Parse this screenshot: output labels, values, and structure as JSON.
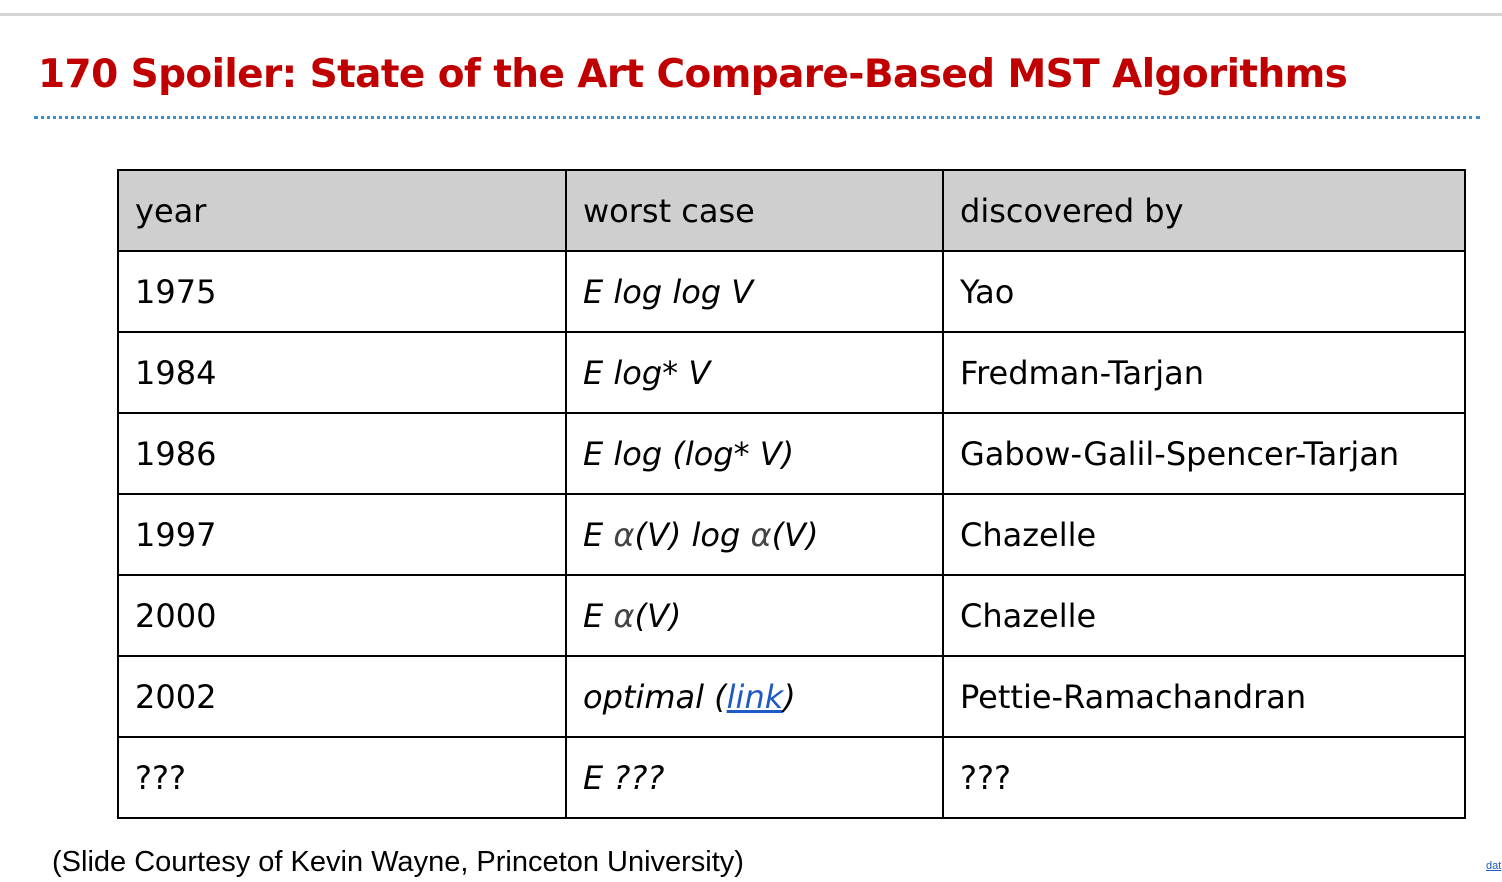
{
  "slide": {
    "title": "170 Spoiler: State of the Art Compare-Based MST Algorithms",
    "credit": "(Slide Courtesy of Kevin Wayne, Princeton University)",
    "corner_link_text": "dat"
  },
  "table": {
    "headers": {
      "year": "year",
      "worst_case": "worst case",
      "discovered_by": "discovered by"
    },
    "rows": [
      {
        "year": "1975",
        "worst_case": "E log log V",
        "discovered_by": "Yao"
      },
      {
        "year": "1984",
        "worst_case": "E log* V",
        "discovered_by": "Fredman-Tarjan"
      },
      {
        "year": "1986",
        "worst_case": "E log (log* V)",
        "discovered_by": "Gabow-Galil-Spencer-Tarjan"
      },
      {
        "year": "1997",
        "worst_case_parts": {
          "pre": "E ",
          "alpha1": "α",
          "mid": "(V) log ",
          "alpha2": "α",
          "post": "(V)"
        },
        "discovered_by": "Chazelle"
      },
      {
        "year": "2000",
        "worst_case_parts": {
          "pre": "E ",
          "alpha1": "α",
          "post": "(V)"
        },
        "discovered_by": "Chazelle"
      },
      {
        "year": "2002",
        "worst_case_parts": {
          "pre": "optimal (",
          "link": "link",
          "post": ")"
        },
        "discovered_by": "Pettie-Ramachandran"
      },
      {
        "year": "???",
        "worst_case": "E ???",
        "discovered_by": "???"
      }
    ]
  },
  "colors": {
    "title": "#c00000",
    "header_fill": "#cfcfcf",
    "link": "#1f5ac4",
    "dotted_rule": "#3a8fd0"
  }
}
